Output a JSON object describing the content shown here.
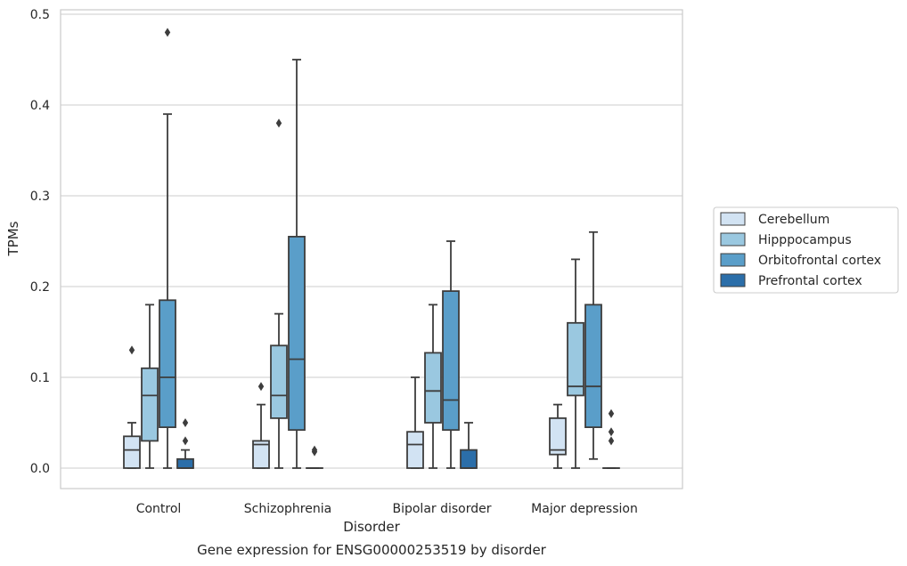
{
  "chart_data": {
    "type": "box",
    "caption": "Gene expression for ENSG00000253519 by disorder",
    "xlabel": "Disorder",
    "ylabel": "TPMs",
    "ylim": [
      -0.023,
      0.505
    ],
    "yticks": [
      0.0,
      0.1,
      0.2,
      0.3,
      0.4,
      0.5
    ],
    "ytick_labels": [
      "0.0",
      "0.1",
      "0.2",
      "0.3",
      "0.4",
      "0.5"
    ],
    "grid": "horizontal",
    "legend_position": "right",
    "categories": [
      "Control",
      "Schizophrenia",
      "Bipolar disorder",
      "Major depression"
    ],
    "series": [
      {
        "name": "Cerebellum",
        "color": "#d2e3f3",
        "boxes": [
          {
            "min": 0.0,
            "q1": 0.0,
            "median": 0.02,
            "q3": 0.035,
            "max": 0.05,
            "outliers": [
              0.13
            ]
          },
          {
            "min": 0.0,
            "q1": 0.0,
            "median": 0.026,
            "q3": 0.03,
            "max": 0.07,
            "outliers": [
              0.09
            ]
          },
          {
            "min": 0.0,
            "q1": 0.0,
            "median": 0.026,
            "q3": 0.04,
            "max": 0.1,
            "outliers": []
          },
          {
            "min": 0.0,
            "q1": 0.015,
            "median": 0.02,
            "q3": 0.055,
            "max": 0.07,
            "outliers": []
          }
        ]
      },
      {
        "name": "Hipppocampus",
        "color": "#9ac8e0",
        "boxes": [
          {
            "min": 0.0,
            "q1": 0.03,
            "median": 0.08,
            "q3": 0.11,
            "max": 0.18,
            "outliers": []
          },
          {
            "min": 0.0,
            "q1": 0.055,
            "median": 0.08,
            "q3": 0.135,
            "max": 0.17,
            "outliers": [
              0.38
            ]
          },
          {
            "min": 0.0,
            "q1": 0.05,
            "median": 0.085,
            "q3": 0.127,
            "max": 0.18,
            "outliers": []
          },
          {
            "min": 0.0,
            "q1": 0.08,
            "median": 0.09,
            "q3": 0.16,
            "max": 0.23,
            "outliers": []
          }
        ]
      },
      {
        "name": "Orbitofrontal cortex",
        "color": "#5a9ec9",
        "boxes": [
          {
            "min": 0.0,
            "q1": 0.045,
            "median": 0.1,
            "q3": 0.185,
            "max": 0.39,
            "outliers": [
              0.48
            ]
          },
          {
            "min": 0.0,
            "q1": 0.042,
            "median": 0.12,
            "q3": 0.255,
            "max": 0.45,
            "outliers": []
          },
          {
            "min": 0.0,
            "q1": 0.042,
            "median": 0.075,
            "q3": 0.195,
            "max": 0.25,
            "outliers": []
          },
          {
            "min": 0.01,
            "q1": 0.045,
            "median": 0.09,
            "q3": 0.18,
            "max": 0.26,
            "outliers": []
          }
        ]
      },
      {
        "name": "Prefrontal cortex",
        "color": "#2b6ea9",
        "boxes": [
          {
            "min": 0.0,
            "q1": 0.0,
            "median": 0.0,
            "q3": 0.01,
            "max": 0.02,
            "outliers": [
              0.03,
              0.05
            ]
          },
          {
            "min": 0.0,
            "q1": 0.0,
            "median": 0.0,
            "q3": 0.0,
            "max": 0.0,
            "outliers": [
              0.018,
              0.02
            ]
          },
          {
            "min": 0.0,
            "q1": 0.0,
            "median": 0.0,
            "q3": 0.02,
            "max": 0.05,
            "outliers": []
          },
          {
            "min": 0.0,
            "q1": 0.0,
            "median": 0.0,
            "q3": 0.0,
            "max": 0.0,
            "outliers": [
              0.03,
              0.04,
              0.06
            ]
          }
        ]
      }
    ]
  }
}
